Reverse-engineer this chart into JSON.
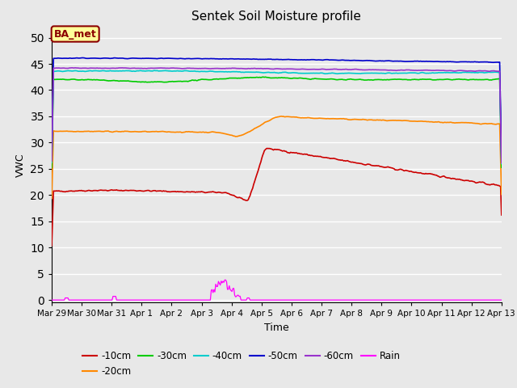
{
  "title": "Sentek Soil Moisture profile",
  "xlabel": "Time",
  "ylabel": "VWC",
  "ylim": [
    -0.5,
    52
  ],
  "yticks": [
    0,
    5,
    10,
    15,
    20,
    25,
    30,
    35,
    40,
    45,
    50
  ],
  "date_labels": [
    "Mar 29",
    "Mar 30",
    "Mar 31",
    "Apr 1",
    "Apr 2",
    "Apr 3",
    "Apr 4",
    "Apr 5",
    "Apr 6",
    "Apr 7",
    "Apr 8",
    "Apr 9",
    "Apr 10",
    "Apr 11",
    "Apr 12",
    "Apr 13"
  ],
  "background_color": "#e8e8e8",
  "grid_color": "#ffffff",
  "legend_box_color": "#ffff99",
  "legend_box_edge": "#8b0000",
  "legend_box_text": "BA_met",
  "series": {
    "10cm": {
      "color": "#cc0000",
      "label": "-10cm"
    },
    "20cm": {
      "color": "#ff8800",
      "label": "-20cm"
    },
    "30cm": {
      "color": "#00cc00",
      "label": "-30cm"
    },
    "40cm": {
      "color": "#00cccc",
      "label": "-40cm"
    },
    "50cm": {
      "color": "#0000cc",
      "label": "-50cm"
    },
    "60cm": {
      "color": "#9933cc",
      "label": "-60cm"
    },
    "rain": {
      "color": "#ff00ff",
      "label": "Rain"
    }
  },
  "figsize": [
    6.4,
    4.8
  ],
  "dpi": 100
}
